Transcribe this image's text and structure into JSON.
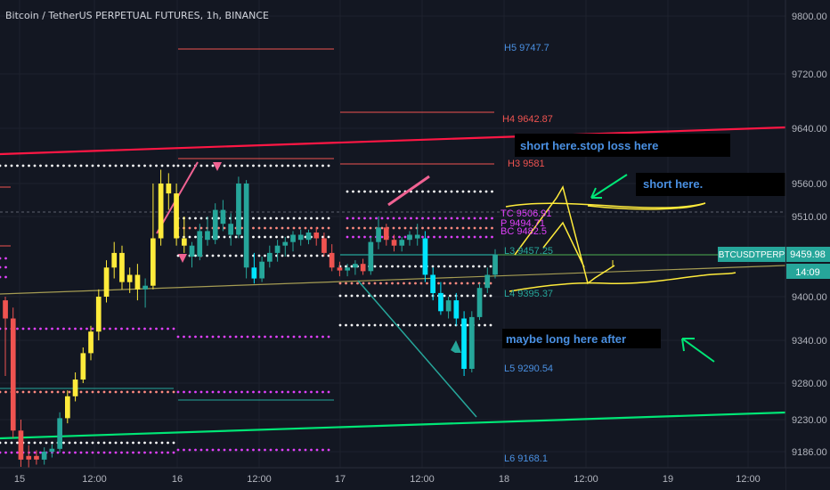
{
  "header": {
    "title": "Bitcoin / TetherUS PERPETUAL FUTURES, 1h, BINANCE"
  },
  "colors": {
    "background": "#131722",
    "bull_candle": "#26a69a",
    "bear_candle": "#ef5350",
    "highlight_candle": "#ffeb3b",
    "cyan_candle": "#00e5ff",
    "pivot_white": "#ffffff",
    "pivot_magenta": "#e040fb",
    "pivot_pink": "#ff8a80",
    "red_line": "#ff1744",
    "green_line": "#00e676",
    "annotation_bg": "#000000",
    "annotation_text": "#4a90e2"
  },
  "price_axis": {
    "ticks": [
      "9800.00",
      "9720.00",
      "9640.00",
      "9560.00",
      "9510.00",
      "9400.00",
      "9340.00",
      "9280.00",
      "9230.00",
      "9186.00"
    ],
    "current_label": "9459.98",
    "timer_label": "14:09",
    "symbol_badge": "BTCUSDTPERP"
  },
  "time_axis": {
    "ticks": [
      "15",
      "12:00",
      "16",
      "12:00",
      "17",
      "12:00",
      "18",
      "12:00",
      "19",
      "12:00"
    ]
  },
  "pivot_labels": {
    "h5": "H5 9747.7",
    "h4": "H4 9642.87",
    "h3": "H3 9581",
    "tc": "TC 9506.91",
    "p": "P 9494.71",
    "bc": "BC 9482.5",
    "l3": "L3 9457.25",
    "l4": "L4 9395.37",
    "l5": "L5 9290.54",
    "l6": "L6 9168.1"
  },
  "annotations": {
    "short_stop": "short here.stop loss here",
    "short_here": "short here.",
    "maybe_long": "maybe long here after"
  },
  "chart_data": {
    "type": "candlestick",
    "symbol": "BTCUSDTPERP",
    "timeframe": "1h",
    "ylim": [
      9170,
      9820
    ],
    "current_price": 9459.98,
    "pivots_day3": {
      "H5": 9747.7,
      "H4": 9642.87,
      "H3": 9581,
      "TC": 9506.91,
      "P": 9494.71,
      "BC": 9482.5,
      "L3": 9457.25,
      "L4": 9395.37,
      "L5": 9290.54,
      "L6": 9168.1
    },
    "candles": [
      [
        9395,
        9400,
        9290,
        9370,
        "bear"
      ],
      [
        9370,
        9385,
        9205,
        9215,
        "bear"
      ],
      [
        9215,
        9230,
        9165,
        9175,
        "bear"
      ],
      [
        9175,
        9195,
        9160,
        9180,
        "bear"
      ],
      [
        9180,
        9188,
        9168,
        9175,
        "bear"
      ],
      [
        9175,
        9192,
        9168,
        9186,
        "bull"
      ],
      [
        9186,
        9196,
        9178,
        9190,
        "bull"
      ],
      [
        9190,
        9240,
        9185,
        9232,
        "bull"
      ],
      [
        9232,
        9270,
        9225,
        9262,
        "hi"
      ],
      [
        9262,
        9295,
        9255,
        9285,
        "hi"
      ],
      [
        9285,
        9330,
        9280,
        9322,
        "hi"
      ],
      [
        9322,
        9360,
        9312,
        9352,
        "hi"
      ],
      [
        9352,
        9410,
        9340,
        9400,
        "hi"
      ],
      [
        9400,
        9450,
        9392,
        9440,
        "hi"
      ],
      [
        9440,
        9475,
        9425,
        9460,
        "hi"
      ],
      [
        9460,
        9470,
        9410,
        9420,
        "hi"
      ],
      [
        9420,
        9440,
        9405,
        9430,
        "hi"
      ],
      [
        9430,
        9445,
        9395,
        9410,
        "hi"
      ],
      [
        9410,
        9425,
        9385,
        9415,
        "bull"
      ],
      [
        9415,
        9560,
        9410,
        9480,
        "hi"
      ],
      [
        9480,
        9580,
        9470,
        9560,
        "hi"
      ],
      [
        9560,
        9575,
        9520,
        9545,
        "hi"
      ],
      [
        9545,
        9560,
        9470,
        9480,
        "hi"
      ],
      [
        9480,
        9510,
        9460,
        9470,
        "hi"
      ],
      [
        9470,
        9475,
        9440,
        9455,
        "bull"
      ],
      [
        9455,
        9500,
        9450,
        9490,
        "bull"
      ],
      [
        9490,
        9510,
        9470,
        9478,
        "bull"
      ],
      [
        9478,
        9530,
        9472,
        9520,
        "bull"
      ],
      [
        9520,
        9535,
        9490,
        9500,
        "bull"
      ],
      [
        9500,
        9515,
        9470,
        9485,
        "bull"
      ],
      [
        9485,
        9570,
        9480,
        9560,
        "bull"
      ],
      [
        9560,
        9565,
        9425,
        9440,
        "bull"
      ],
      [
        9440,
        9460,
        9418,
        9425,
        "cy"
      ],
      [
        9425,
        9455,
        9420,
        9448,
        "bull"
      ],
      [
        9448,
        9470,
        9440,
        9460,
        "bull"
      ],
      [
        9460,
        9478,
        9448,
        9470,
        "bull"
      ],
      [
        9470,
        9482,
        9455,
        9475,
        "bull"
      ],
      [
        9475,
        9490,
        9462,
        9485,
        "bull"
      ],
      [
        9485,
        9492,
        9470,
        9478,
        "bull"
      ],
      [
        9478,
        9492,
        9472,
        9488,
        "bull"
      ],
      [
        9488,
        9495,
        9470,
        9480,
        "bear"
      ],
      [
        9480,
        9488,
        9455,
        9460,
        "bear"
      ],
      [
        9460,
        9472,
        9435,
        9440,
        "bear"
      ],
      [
        9440,
        9448,
        9428,
        9436,
        "bear"
      ],
      [
        9436,
        9445,
        9428,
        9440,
        "bull"
      ],
      [
        9440,
        9450,
        9430,
        9445,
        "bull"
      ],
      [
        9445,
        9452,
        9430,
        9435,
        "bear"
      ],
      [
        9435,
        9482,
        9430,
        9475,
        "bull"
      ],
      [
        9475,
        9510,
        9465,
        9495,
        "bull"
      ],
      [
        9495,
        9500,
        9470,
        9478,
        "bear"
      ],
      [
        9478,
        9485,
        9462,
        9470,
        "bear"
      ],
      [
        9470,
        9482,
        9462,
        9478,
        "bull"
      ],
      [
        9478,
        9490,
        9470,
        9485,
        "bull"
      ],
      [
        9485,
        9500,
        9470,
        9480,
        "bull"
      ],
      [
        9480,
        9490,
        9420,
        9430,
        "cy"
      ],
      [
        9430,
        9440,
        9395,
        9405,
        "cy"
      ],
      [
        9405,
        9420,
        9375,
        9380,
        "cy"
      ],
      [
        9380,
        9400,
        9370,
        9395,
        "bull"
      ],
      [
        9395,
        9405,
        9360,
        9370,
        "cy"
      ],
      [
        9370,
        9380,
        9290,
        9300,
        "cy"
      ],
      [
        9300,
        9380,
        9295,
        9372,
        "bull"
      ],
      [
        9372,
        9418,
        9368,
        9412,
        "bull"
      ],
      [
        9412,
        9440,
        9405,
        9430,
        "bull"
      ],
      [
        9430,
        9465,
        9425,
        9458,
        "bull"
      ]
    ]
  }
}
